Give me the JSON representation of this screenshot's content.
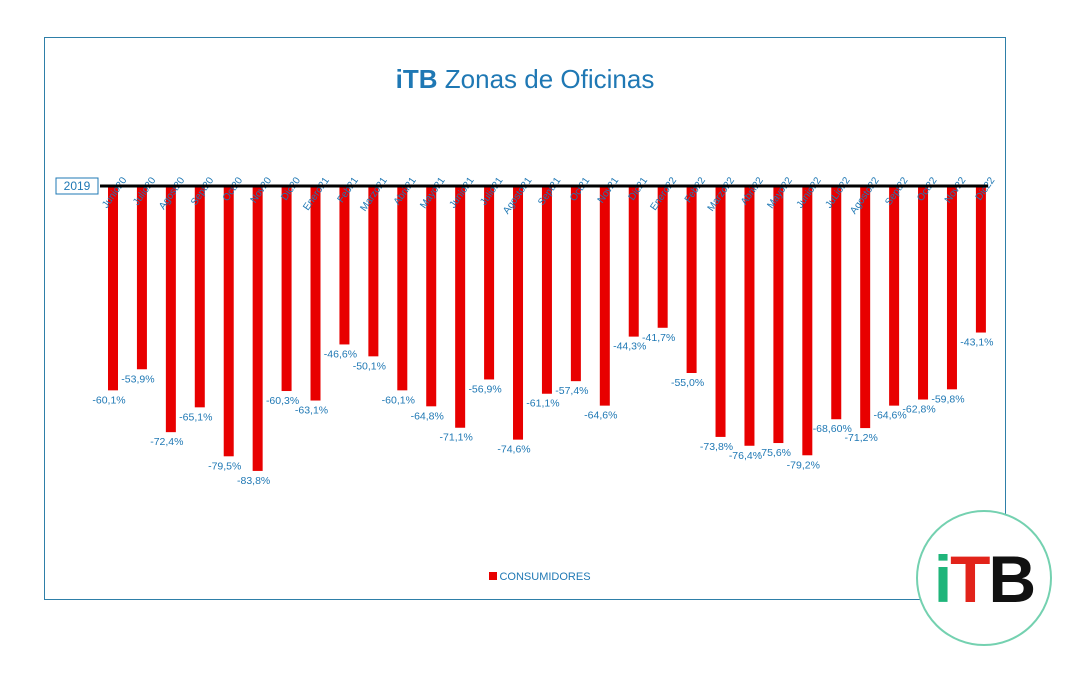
{
  "title": {
    "brand": "iTB",
    "text": "Zonas de Oficinas"
  },
  "chart_data": {
    "type": "bar",
    "title": "iTB Zonas de Oficinas",
    "baseline_label": "2019",
    "categories": [
      "Junio20",
      "Julio20",
      "Agost20",
      "Sept20",
      "Oct20",
      "Nov20",
      "Dic20",
      "Enero21",
      "Feb21",
      "Marzo21",
      "Abril21",
      "Mayo21",
      "Junio21",
      "Julio21",
      "Agosto21",
      "Sept21",
      "Oct21",
      "Nov21",
      "Dic21",
      "Enero22",
      "Feb22",
      "Marzo22",
      "Abril22",
      "Mayo22",
      "Junio22",
      "JuLio22",
      "Agosto22",
      "Sept22",
      "Oct22",
      "Nov22",
      "Dic22"
    ],
    "series": [
      {
        "name": "CONSUMIDORES",
        "color": "#e80000",
        "values": [
          -60.1,
          -53.9,
          -72.4,
          -65.1,
          -79.5,
          -83.8,
          -60.3,
          -63.1,
          -46.6,
          -50.1,
          -60.1,
          -64.8,
          -71.1,
          -56.9,
          -74.6,
          -61.1,
          -57.4,
          -64.6,
          -44.3,
          -41.7,
          -55.0,
          -73.8,
          -76.4,
          -75.6,
          -79.2,
          -68.6,
          -71.2,
          -64.6,
          -62.8,
          -59.8,
          -43.1
        ],
        "labels": [
          "-60,1%",
          "-53,9%",
          "-72,4%",
          "-65,1%",
          "-79,5%",
          "-83,8%",
          "-60,3%",
          "-63,1%",
          "-46,6%",
          "-50,1%",
          "-60,1%",
          "-64,8%",
          "-71,1%",
          "-56,9%",
          "-74,6%",
          "-61,1%",
          "-57,4%",
          "-64,6%",
          "-44,3%",
          "-41,7%",
          "-55,0%",
          "-73,8%",
          "-76,4%",
          "-75,6%",
          "-79,2%",
          "-68,60%",
          "-71,2%",
          "-64,6%",
          "-62,8%",
          "-59,8%",
          "-43,1%"
        ]
      }
    ],
    "ylim": [
      -100,
      0
    ],
    "grid": false,
    "legend": "bottom-center",
    "axis_color": "#000000",
    "label_color": "#1f78b4"
  },
  "logo": {
    "i": "i",
    "t": "T",
    "b": "B"
  }
}
